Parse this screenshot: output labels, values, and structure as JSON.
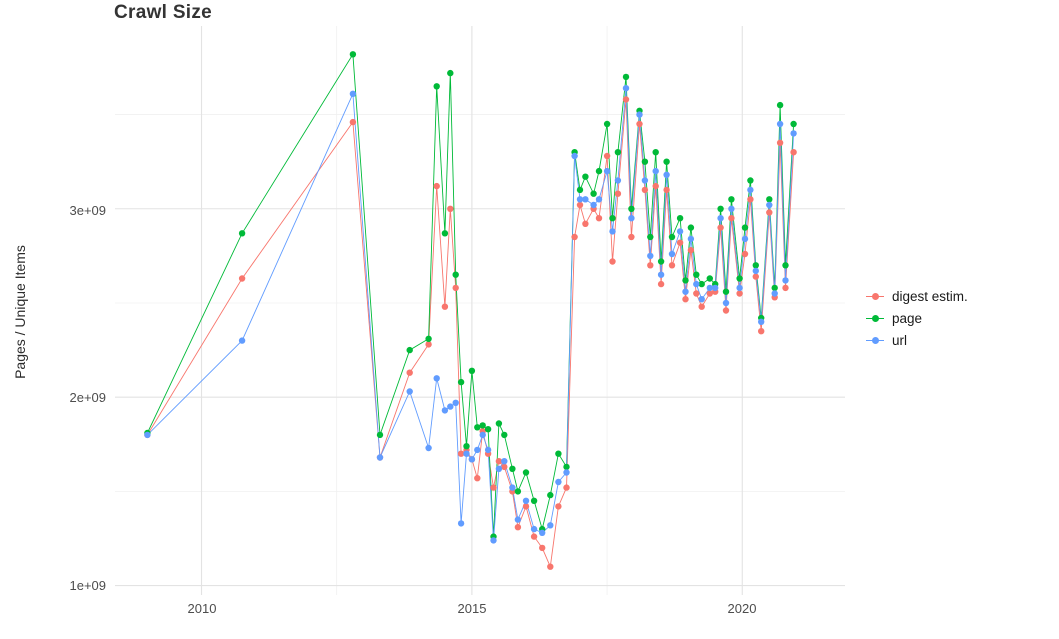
{
  "chart_data": {
    "type": "line",
    "title": "Crawl Size",
    "xlabel": "",
    "ylabel": "Pages / Unique Items",
    "y_unit": "1e9 (values below are in billions)",
    "xlim": [
      2008.4,
      2021.9
    ],
    "ylim": [
      0.95,
      3.97
    ],
    "grid": {
      "major_color": "#e3e3e3",
      "minor_color": "#f0f0f0",
      "background": "#ffffff"
    },
    "legend_position": "right",
    "marker": "circle",
    "xticks": {
      "major": [
        2010,
        2015,
        2020
      ],
      "minor": [
        2012.5,
        2017.5
      ],
      "labels": [
        "2010",
        "2015",
        "2020"
      ]
    },
    "yticks": {
      "major": [
        1,
        2,
        3
      ],
      "minor": [
        1.5,
        2.5,
        3.5
      ],
      "labels": [
        "1e+09",
        "2e+09",
        "3e+09"
      ]
    },
    "x": [
      2009.0,
      2010.75,
      2012.8,
      2013.3,
      2013.85,
      2014.2,
      2014.35,
      2014.5,
      2014.6,
      2014.7,
      2014.8,
      2014.9,
      2015.0,
      2015.1,
      2015.2,
      2015.3,
      2015.4,
      2015.5,
      2015.6,
      2015.75,
      2015.85,
      2016.0,
      2016.15,
      2016.3,
      2016.45,
      2016.6,
      2016.75,
      2016.9,
      2017.0,
      2017.1,
      2017.25,
      2017.35,
      2017.5,
      2017.6,
      2017.7,
      2017.85,
      2017.95,
      2018.1,
      2018.2,
      2018.3,
      2018.4,
      2018.5,
      2018.6,
      2018.7,
      2018.85,
      2018.95,
      2019.05,
      2019.15,
      2019.25,
      2019.4,
      2019.5,
      2019.6,
      2019.7,
      2019.8,
      2019.95,
      2020.05,
      2020.15,
      2020.25,
      2020.35,
      2020.5,
      2020.6,
      2020.7,
      2020.8,
      2020.95
    ],
    "series": [
      {
        "name": "digest estim.",
        "color": "#F8766D",
        "values": [
          1.8,
          2.63,
          3.46,
          1.68,
          2.13,
          2.28,
          3.12,
          2.48,
          3.0,
          2.58,
          1.7,
          1.72,
          1.67,
          1.57,
          1.82,
          1.7,
          1.52,
          1.66,
          1.63,
          1.5,
          1.31,
          1.42,
          1.26,
          1.2,
          1.1,
          1.42,
          1.52,
          2.85,
          3.02,
          2.92,
          3.0,
          2.95,
          3.28,
          2.72,
          3.08,
          3.58,
          2.85,
          3.45,
          3.1,
          2.7,
          3.12,
          2.6,
          3.1,
          2.7,
          2.82,
          2.52,
          2.78,
          2.55,
          2.48,
          2.55,
          2.56,
          2.9,
          2.46,
          2.95,
          2.55,
          2.76,
          3.05,
          2.64,
          2.35,
          2.98,
          2.53,
          3.35,
          2.58,
          3.3
        ]
      },
      {
        "name": "page",
        "color": "#00BA38",
        "values": [
          1.81,
          2.87,
          3.82,
          1.8,
          2.25,
          2.31,
          3.65,
          2.87,
          3.72,
          2.65,
          2.08,
          1.74,
          2.14,
          1.84,
          1.85,
          1.83,
          1.26,
          1.86,
          1.8,
          1.62,
          1.5,
          1.6,
          1.45,
          1.3,
          1.48,
          1.7,
          1.63,
          3.3,
          3.1,
          3.17,
          3.08,
          3.2,
          3.45,
          2.95,
          3.3,
          3.7,
          3.0,
          3.52,
          3.25,
          2.85,
          3.3,
          2.72,
          3.25,
          2.85,
          2.95,
          2.62,
          2.9,
          2.65,
          2.6,
          2.63,
          2.6,
          3.0,
          2.56,
          3.05,
          2.63,
          2.9,
          3.15,
          2.7,
          2.42,
          3.05,
          2.58,
          3.55,
          2.7,
          3.45
        ]
      },
      {
        "name": "url",
        "color": "#619CFF",
        "values": [
          1.8,
          2.3,
          3.61,
          1.68,
          2.03,
          1.73,
          2.1,
          1.93,
          1.95,
          1.97,
          1.33,
          1.7,
          1.67,
          1.72,
          1.8,
          1.72,
          1.24,
          1.62,
          1.66,
          1.52,
          1.35,
          1.45,
          1.3,
          1.28,
          1.32,
          1.55,
          1.6,
          3.28,
          3.05,
          3.05,
          3.02,
          3.05,
          3.2,
          2.88,
          3.15,
          3.64,
          2.95,
          3.5,
          3.15,
          2.75,
          3.2,
          2.65,
          3.18,
          2.76,
          2.88,
          2.56,
          2.84,
          2.6,
          2.52,
          2.58,
          2.58,
          2.95,
          2.5,
          3.0,
          2.58,
          2.84,
          3.1,
          2.67,
          2.4,
          3.02,
          2.55,
          3.45,
          2.62,
          3.4
        ]
      }
    ]
  }
}
